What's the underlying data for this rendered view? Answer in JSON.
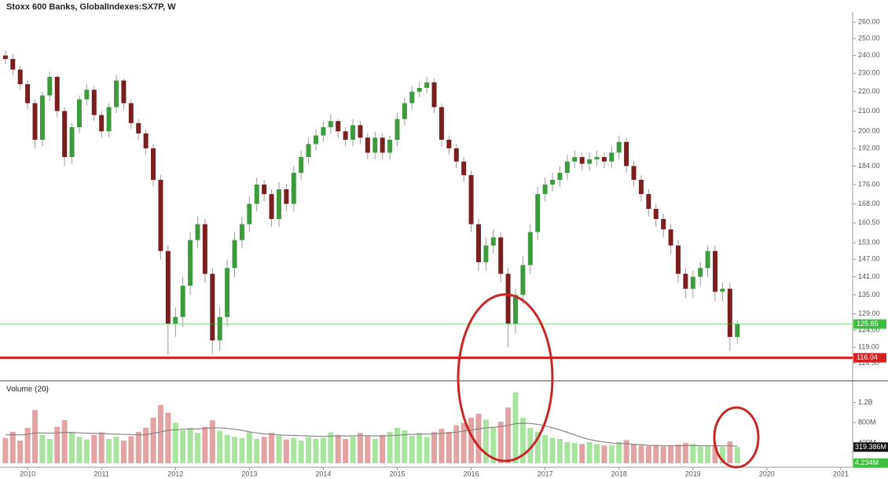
{
  "chart_data": {
    "type": "candlestick",
    "title": "Stoxx 600 Banks, GlobalIndexes:SX7P, W",
    "volume_title": "Volume (20)",
    "log_scale": true,
    "grid": false,
    "up_color": "#3e9a3e",
    "down_color": "#7a1f1f",
    "volume_up_color": "#a9e3a0",
    "volume_down_color": "#e3a3a3",
    "ma_color": "#888888",
    "xlim": [
      2009.68,
      2021.16
    ],
    "xticks": [
      2010,
      2011,
      2012,
      2013,
      2014,
      2015,
      2016,
      2017,
      2018,
      2019,
      2020,
      2021
    ],
    "ylim": [
      110.2,
      266.6
    ],
    "yticks": [
      {
        "value": 260,
        "label": "260.00"
      },
      {
        "value": 250,
        "label": "250.00"
      },
      {
        "value": 240,
        "label": "240.00"
      },
      {
        "value": 230,
        "label": "230.00"
      },
      {
        "value": 220,
        "label": "220.00"
      },
      {
        "value": 210,
        "label": "210.00"
      },
      {
        "value": 200,
        "label": "200.00"
      },
      {
        "value": 192,
        "label": "192.00"
      },
      {
        "value": 184,
        "label": "184.00"
      },
      {
        "value": 176,
        "label": "176.00"
      },
      {
        "value": 168,
        "label": "168.00"
      },
      {
        "value": 160.5,
        "label": "160.50"
      },
      {
        "value": 153,
        "label": "153.00"
      },
      {
        "value": 147,
        "label": "147.00"
      },
      {
        "value": 141,
        "label": "141.00"
      },
      {
        "value": 135,
        "label": "135.00"
      },
      {
        "value": 129,
        "label": "129.00"
      },
      {
        "value": 124,
        "label": "124.00"
      },
      {
        "value": 119,
        "label": "119.00"
      },
      {
        "value": 114.5,
        "label": "114.50"
      }
    ],
    "price_labels": [
      {
        "value": 125.85,
        "label": "125.85",
        "color": "#3fbf3f"
      },
      {
        "value": 116.04,
        "label": "116.04",
        "color": "#d42020"
      }
    ],
    "vylim": [
      0,
      1580
    ],
    "vyticks": [
      {
        "value": 1200,
        "label": "1.2B"
      },
      {
        "value": 800,
        "label": "800M"
      },
      {
        "value": 400,
        "label": "400M"
      }
    ],
    "volume_labels": [
      {
        "value": 319.386,
        "label": "319.386M",
        "color": "#111111"
      },
      {
        "value": 4.234,
        "label": "4.234M",
        "color": "#3fbf3f"
      }
    ],
    "x": [
      2009.7,
      2009.8,
      2009.9,
      2010.0,
      2010.1,
      2010.2,
      2010.3,
      2010.4,
      2010.5,
      2010.6,
      2010.7,
      2010.8,
      2010.9,
      2011.0,
      2011.1,
      2011.2,
      2011.3,
      2011.4,
      2011.5,
      2011.6,
      2011.7,
      2011.8,
      2011.9,
      2012.0,
      2012.1,
      2012.2,
      2012.3,
      2012.4,
      2012.5,
      2012.6,
      2012.7,
      2012.8,
      2012.9,
      2013.0,
      2013.1,
      2013.2,
      2013.3,
      2013.4,
      2013.5,
      2013.6,
      2013.7,
      2013.8,
      2013.9,
      2014.0,
      2014.1,
      2014.2,
      2014.3,
      2014.4,
      2014.5,
      2014.6,
      2014.7,
      2014.8,
      2014.9,
      2015.0,
      2015.1,
      2015.2,
      2015.3,
      2015.4,
      2015.5,
      2015.6,
      2015.7,
      2015.8,
      2015.9,
      2016.0,
      2016.1,
      2016.2,
      2016.3,
      2016.4,
      2016.5,
      2016.6,
      2016.7,
      2016.8,
      2016.9,
      2017.0,
      2017.1,
      2017.2,
      2017.3,
      2017.4,
      2017.5,
      2017.6,
      2017.7,
      2017.8,
      2017.9,
      2018.0,
      2018.1,
      2018.2,
      2018.3,
      2018.4,
      2018.5,
      2018.6,
      2018.7,
      2018.8,
      2018.9,
      2019.0,
      2019.1,
      2019.2,
      2019.3,
      2019.4,
      2019.5,
      2019.6
    ],
    "open": [
      240,
      238,
      232,
      224,
      214,
      196,
      218,
      228,
      210,
      188,
      202,
      216,
      221,
      208,
      200,
      212,
      226,
      214,
      204,
      199,
      192,
      178,
      150,
      126,
      128,
      138,
      154,
      160,
      142,
      121,
      128,
      144,
      154,
      160,
      168,
      176,
      172,
      162,
      174,
      168,
      181,
      188,
      194,
      198,
      202,
      205,
      200,
      196,
      203,
      197,
      190,
      197,
      190,
      196,
      206,
      214,
      220,
      222,
      225,
      212,
      196,
      192,
      186,
      180,
      160,
      146,
      152,
      155,
      142,
      126,
      135,
      145,
      157,
      172,
      176,
      178,
      181,
      186,
      188,
      185,
      187,
      188,
      186,
      190,
      195,
      184,
      178,
      172,
      166,
      162,
      158,
      152,
      142,
      137,
      141,
      144,
      150,
      136,
      137,
      122
    ],
    "high": [
      243,
      241,
      234,
      226,
      216,
      220,
      231,
      229,
      212,
      204,
      218,
      224,
      223,
      210,
      214,
      229,
      227,
      216,
      206,
      201,
      194,
      180,
      152,
      131,
      141,
      157,
      163,
      162,
      144,
      131,
      147,
      157,
      163,
      171,
      179,
      178,
      174,
      177,
      176,
      184,
      191,
      197,
      201,
      205,
      208,
      206,
      202,
      206,
      205,
      199,
      200,
      199,
      198,
      209,
      217,
      223,
      225,
      228,
      227,
      214,
      198,
      194,
      188,
      182,
      162,
      155,
      158,
      157,
      144,
      137,
      148,
      160,
      175,
      179,
      181,
      184,
      189,
      191,
      190,
      190,
      191,
      190,
      193,
      198,
      197,
      186,
      180,
      174,
      168,
      164,
      160,
      154,
      144,
      143,
      146,
      152,
      152,
      139,
      139,
      127
    ],
    "low": [
      235,
      229,
      221,
      211,
      192,
      193,
      215,
      207,
      184,
      185,
      199,
      213,
      205,
      197,
      197,
      209,
      211,
      201,
      196,
      189,
      175,
      147,
      117,
      122,
      125,
      135,
      151,
      139,
      117,
      118,
      125,
      141,
      151,
      157,
      165,
      169,
      159,
      159,
      165,
      165,
      178,
      185,
      191,
      195,
      199,
      197,
      193,
      193,
      194,
      187,
      187,
      187,
      187,
      193,
      203,
      211,
      217,
      219,
      209,
      193,
      189,
      183,
      177,
      157,
      143,
      143,
      149,
      139,
      119,
      123,
      132,
      142,
      154,
      169,
      173,
      175,
      178,
      183,
      182,
      182,
      184,
      183,
      183,
      187,
      181,
      175,
      169,
      163,
      159,
      155,
      149,
      139,
      134,
      134,
      138,
      141,
      133,
      133,
      118,
      120
    ],
    "close": [
      238,
      232,
      224,
      214,
      196,
      218,
      228,
      210,
      188,
      202,
      216,
      221,
      208,
      200,
      212,
      226,
      214,
      204,
      199,
      192,
      178,
      150,
      126,
      128,
      138,
      154,
      160,
      142,
      121,
      128,
      144,
      154,
      160,
      168,
      176,
      172,
      162,
      174,
      168,
      181,
      188,
      194,
      198,
      202,
      205,
      200,
      196,
      203,
      197,
      190,
      197,
      190,
      196,
      206,
      214,
      220,
      222,
      225,
      212,
      196,
      192,
      186,
      180,
      160,
      146,
      152,
      155,
      142,
      126,
      135,
      145,
      157,
      172,
      176,
      178,
      181,
      186,
      188,
      185,
      187,
      188,
      186,
      190,
      195,
      184,
      178,
      172,
      166,
      162,
      158,
      152,
      142,
      137,
      141,
      144,
      150,
      136,
      137,
      122,
      125.85
    ],
    "volume": [
      500,
      620,
      450,
      700,
      1050,
      560,
      480,
      720,
      850,
      600,
      520,
      470,
      560,
      610,
      480,
      520,
      450,
      530,
      620,
      700,
      900,
      1150,
      1000,
      800,
      650,
      700,
      600,
      720,
      850,
      640,
      560,
      520,
      500,
      610,
      480,
      520,
      600,
      550,
      470,
      500,
      450,
      520,
      480,
      500,
      610,
      560,
      480,
      520,
      600,
      540,
      480,
      560,
      620,
      700,
      650,
      540,
      600,
      520,
      620,
      680,
      620,
      750,
      800,
      900,
      980,
      860,
      720,
      820,
      1100,
      1400,
      900,
      700,
      620,
      560,
      500,
      480,
      420,
      400,
      380,
      420,
      380,
      350,
      360,
      420,
      460,
      380,
      350,
      340,
      360,
      330,
      350,
      370,
      400,
      380,
      330,
      340,
      360,
      320,
      430,
      320
    ],
    "volume_ma": [
      560,
      565,
      560,
      570,
      600,
      600,
      595,
      600,
      610,
      610,
      600,
      595,
      590,
      590,
      580,
      575,
      570,
      565,
      560,
      565,
      590,
      620,
      650,
      660,
      670,
      675,
      680,
      690,
      700,
      700,
      690,
      670,
      650,
      620,
      600,
      580,
      570,
      560,
      555,
      550,
      545,
      540,
      535,
      530,
      535,
      540,
      540,
      540,
      545,
      545,
      540,
      540,
      545,
      555,
      565,
      570,
      575,
      575,
      580,
      590,
      600,
      615,
      635,
      655,
      680,
      700,
      710,
      725,
      750,
      780,
      790,
      785,
      770,
      740,
      700,
      660,
      610,
      560,
      510,
      470,
      440,
      420,
      400,
      390,
      385,
      375,
      365,
      355,
      350,
      345,
      345,
      345,
      348,
      350,
      348,
      345,
      345,
      342,
      345,
      340
    ]
  }
}
